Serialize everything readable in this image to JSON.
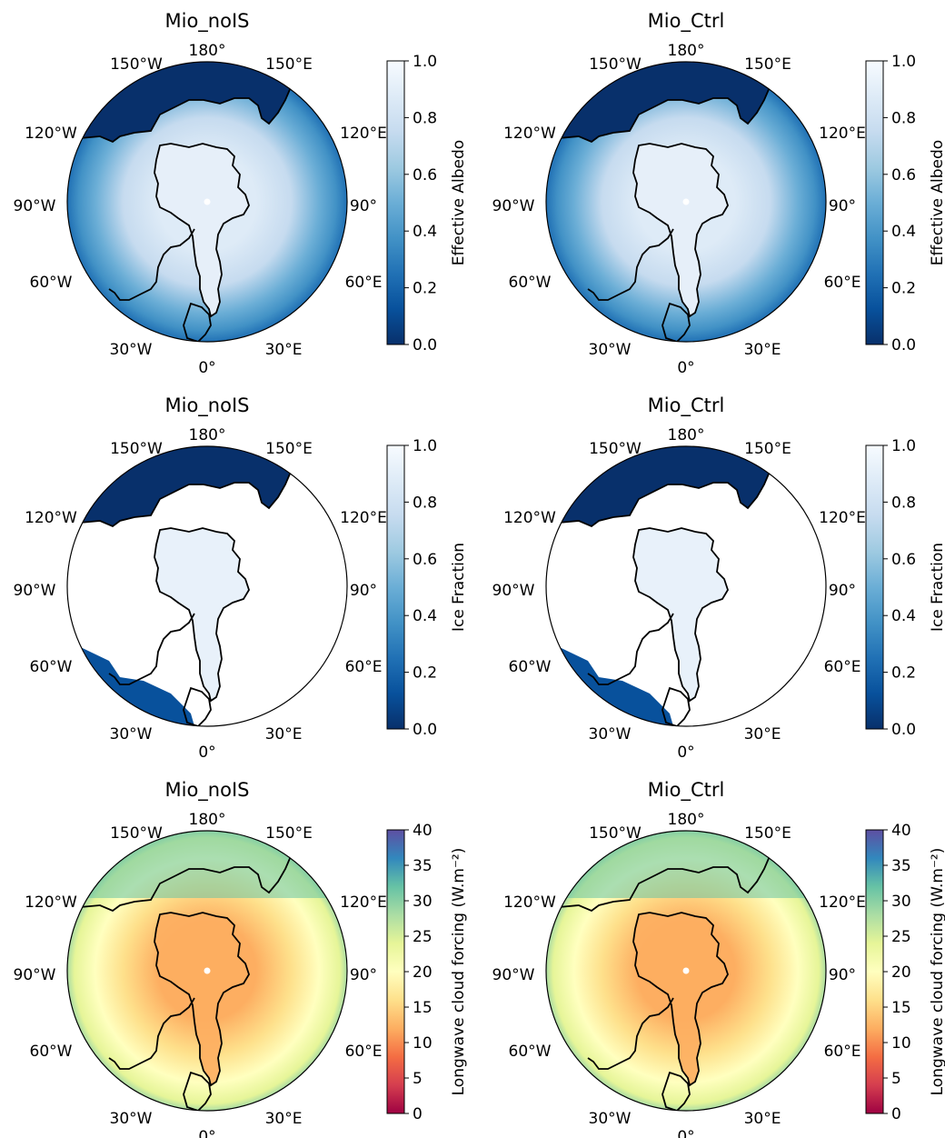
{
  "lon_labels": [
    "180°",
    "150°E",
    "120°E",
    "90°",
    "60°E",
    "30°E",
    "0°",
    "30°W",
    "60°W",
    "90°W",
    "120°W",
    "150°W"
  ],
  "panels": [
    {
      "title": "Mio_noIS",
      "field": "albedo",
      "colorbar_label": "Effective Albedo",
      "cmap": "Blues_r",
      "ticks": [
        "0.0",
        "0.2",
        "0.4",
        "0.6",
        "0.8",
        "1.0"
      ],
      "pole_dot": true
    },
    {
      "title": "Mio_Ctrl",
      "field": "albedo",
      "colorbar_label": "Effective Albedo",
      "cmap": "Blues_r",
      "ticks": [
        "0.0",
        "0.2",
        "0.4",
        "0.6",
        "0.8",
        "1.0"
      ],
      "pole_dot": true
    },
    {
      "title": "Mio_noIS",
      "field": "ice",
      "colorbar_label": "Ice Fraction",
      "cmap": "Blues_r",
      "ticks": [
        "0.0",
        "0.2",
        "0.4",
        "0.6",
        "0.8",
        "1.0"
      ],
      "pole_dot": false
    },
    {
      "title": "Mio_Ctrl",
      "field": "ice",
      "colorbar_label": "Ice Fraction",
      "cmap": "Blues_r",
      "ticks": [
        "0.0",
        "0.2",
        "0.4",
        "0.6",
        "0.8",
        "1.0"
      ],
      "pole_dot": false
    },
    {
      "title": "Mio_noIS",
      "field": "lwcf",
      "colorbar_label": "Longwave cloud forcing (W.m⁻²)",
      "cmap": "Spectral",
      "ticks": [
        "0",
        "5",
        "10",
        "15",
        "20",
        "25",
        "30",
        "35",
        "40"
      ],
      "pole_dot": true
    },
    {
      "title": "Mio_Ctrl",
      "field": "lwcf",
      "colorbar_label": "Longwave cloud forcing (W.m⁻²)",
      "cmap": "Spectral",
      "ticks": [
        "0",
        "5",
        "10",
        "15",
        "20",
        "25",
        "30",
        "35",
        "40"
      ],
      "pole_dot": true
    }
  ],
  "colormaps": {
    "Blues_r": [
      "#08306b",
      "#08519c",
      "#2171b5",
      "#4292c6",
      "#6baed6",
      "#9ecae1",
      "#c6dbef",
      "#deebf7",
      "#f7fbff"
    ],
    "Spectral": [
      "#9e0142",
      "#d53e4f",
      "#f46d43",
      "#fdae61",
      "#fee08b",
      "#ffffbf",
      "#e6f598",
      "#abdda4",
      "#66c2a5",
      "#3288bd",
      "#5e4fa2"
    ]
  }
}
